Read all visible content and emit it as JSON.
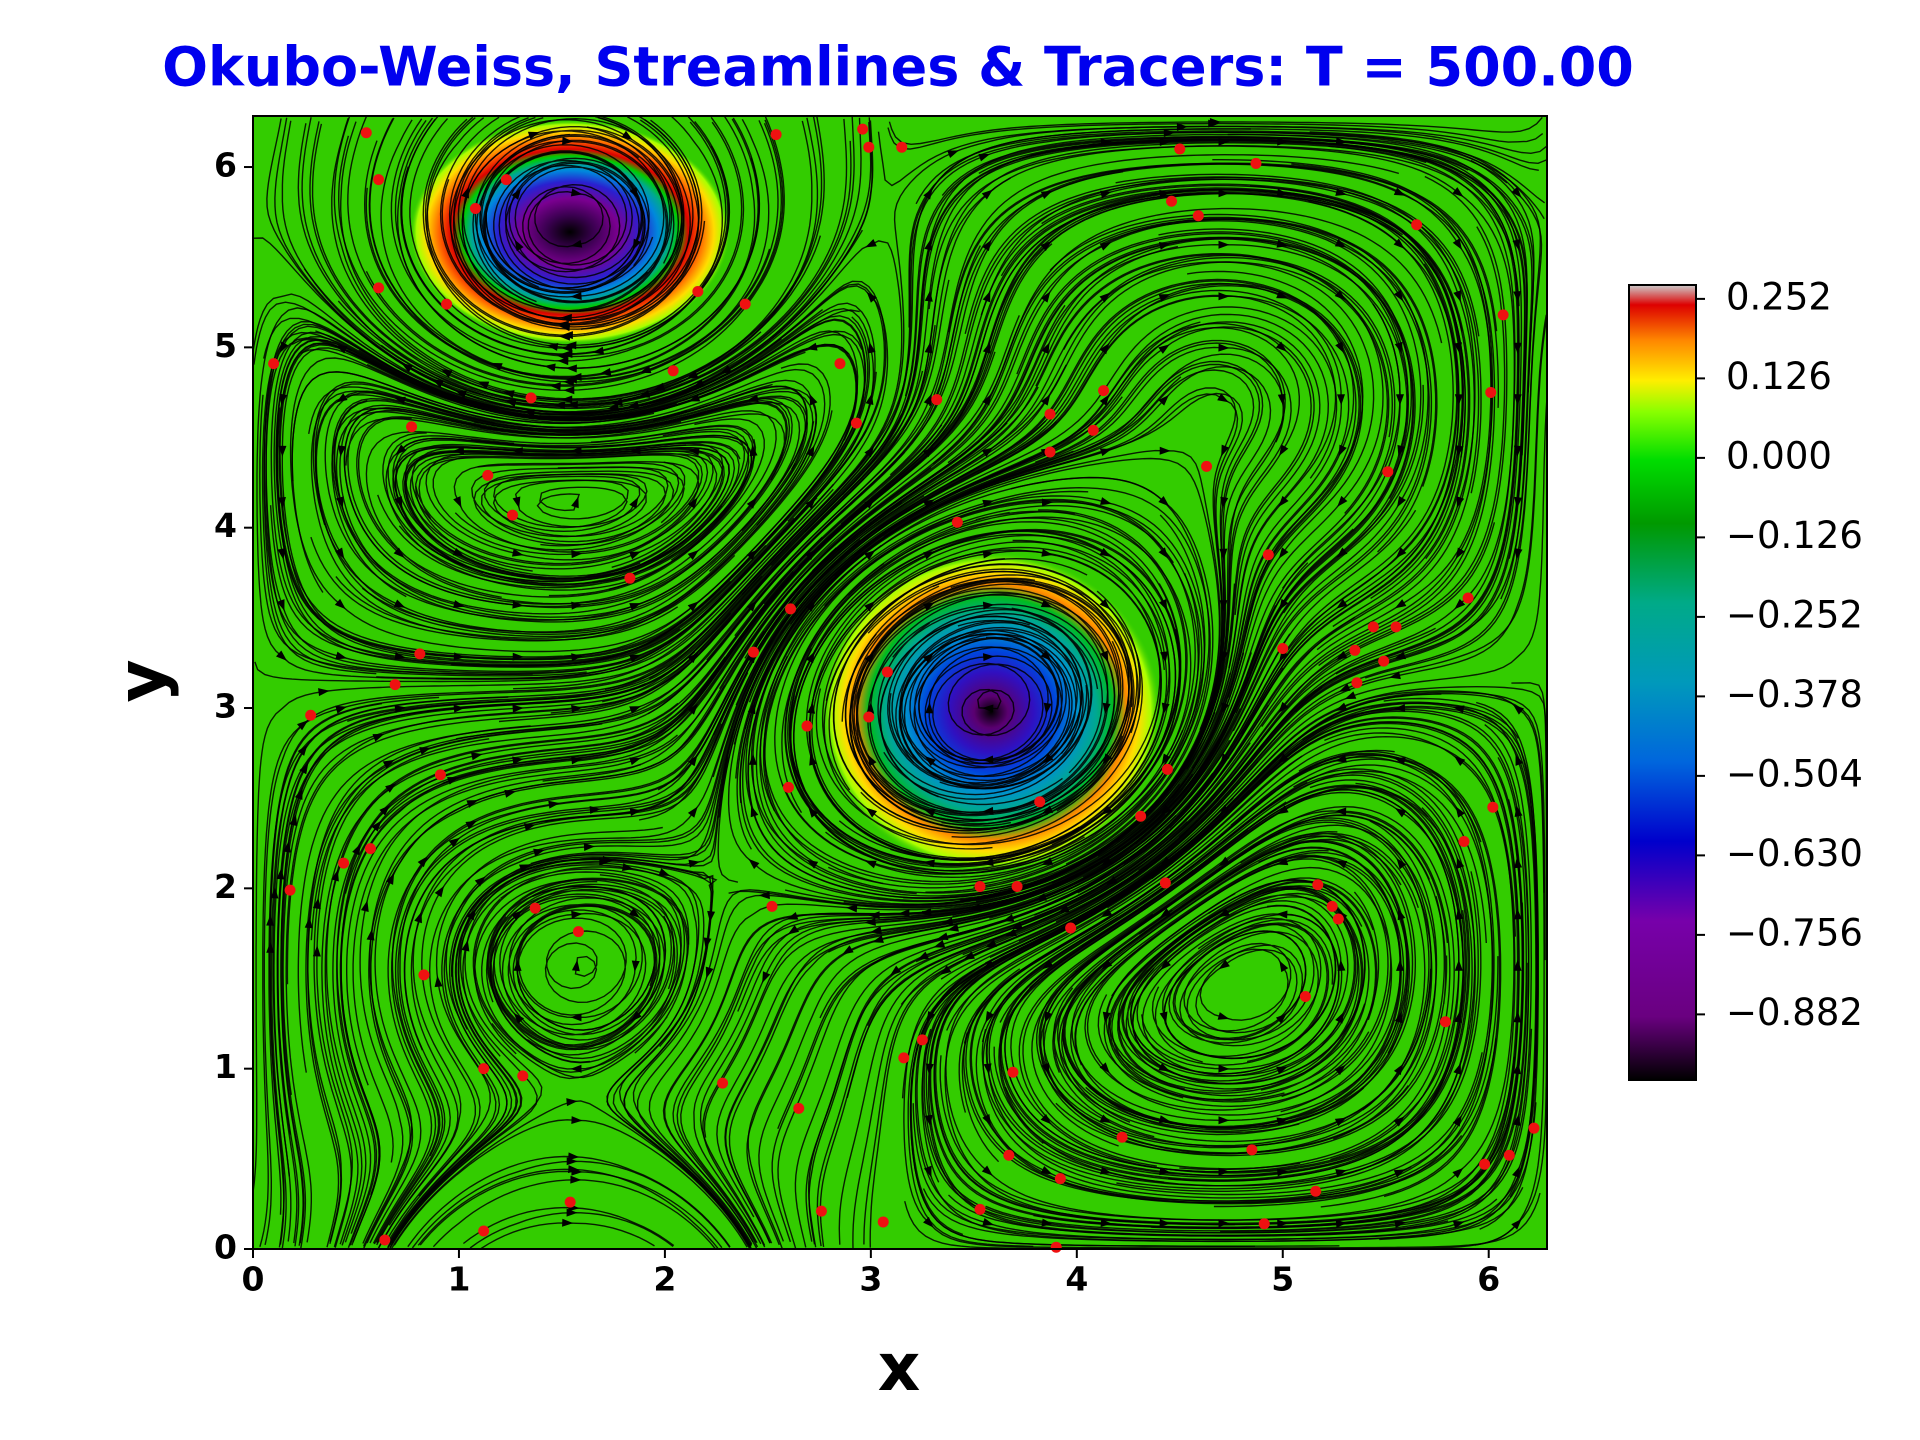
{
  "chart_data": {
    "type": "scatter",
    "title": "Okubo-Weiss, Streamlines & Tracers: T = 500.00",
    "xlabel": "x",
    "ylabel": "y",
    "xlim": [
      0,
      6.283
    ],
    "ylim": [
      0,
      6.283
    ],
    "xticks": [
      0,
      1,
      2,
      3,
      4,
      5,
      6
    ],
    "yticks": [
      0,
      1,
      2,
      3,
      4,
      5,
      6
    ],
    "color": "#ee1111",
    "x": [
      0.55,
      0.61,
      0.61,
      0.1,
      0.77,
      1.14,
      1.26,
      1.35,
      0.94,
      1.08,
      1.23,
      2.16,
      2.39,
      2.04,
      2.54,
      2.85,
      2.93,
      2.96,
      2.99,
      3.15,
      3.32,
      3.87,
      3.87,
      4.08,
      4.13,
      4.5,
      4.46,
      4.59,
      4.87,
      5.65,
      6.07,
      6.01,
      5.51,
      4.63,
      4.93,
      3.42,
      1.83,
      2.61,
      2.43,
      0.81,
      0.69,
      0.28,
      0.91,
      0.44,
      0.57,
      0.18,
      1.37,
      1.58,
      0.83,
      1.12,
      1.31,
      2.28,
      2.65,
      2.52,
      2.6,
      2.69,
      2.99,
      3.08,
      3.82,
      4.44,
      4.31,
      4.43,
      3.53,
      3.71,
      3.97,
      5.0,
      5.35,
      5.44,
      5.55,
      5.49,
      5.36,
      5.9,
      6.02,
      5.88,
      5.17,
      5.24,
      5.27,
      5.11,
      5.79,
      3.25,
      3.16,
      3.69,
      4.22,
      4.85,
      5.16,
      6.22,
      5.98,
      6.1,
      4.91,
      3.92,
      3.67,
      3.53,
      3.9,
      3.06,
      2.76,
      1.54,
      1.12,
      0.64
    ],
    "y": [
      6.19,
      5.93,
      5.33,
      4.91,
      4.56,
      4.29,
      4.07,
      4.72,
      5.24,
      5.77,
      5.93,
      5.31,
      5.24,
      4.87,
      6.18,
      4.91,
      4.58,
      6.21,
      6.11,
      6.11,
      4.71,
      4.63,
      4.42,
      4.54,
      4.76,
      6.1,
      5.81,
      5.73,
      6.02,
      5.68,
      5.18,
      4.75,
      4.31,
      4.34,
      3.85,
      4.03,
      3.72,
      3.55,
      3.31,
      3.3,
      3.13,
      2.96,
      2.63,
      2.14,
      2.22,
      1.99,
      1.89,
      1.76,
      1.52,
      1.0,
      0.96,
      0.92,
      0.78,
      1.9,
      2.56,
      2.9,
      2.95,
      3.2,
      2.48,
      2.66,
      2.4,
      2.03,
      2.01,
      2.01,
      1.78,
      3.33,
      3.32,
      3.45,
      3.45,
      3.26,
      3.14,
      3.61,
      2.45,
      2.26,
      2.02,
      1.9,
      1.83,
      1.4,
      1.26,
      1.16,
      1.06,
      0.98,
      0.62,
      0.55,
      0.32,
      0.67,
      0.47,
      0.52,
      0.14,
      0.39,
      0.52,
      0.22,
      0.01,
      0.15,
      0.21,
      0.26,
      0.1,
      0.05
    ],
    "colorbar": {
      "clim": [
        -0.986,
        0.274
      ],
      "ticks": [
        0.252,
        0.126,
        {
          "value": 0,
          "label": "0.000"
        },
        {
          "value": -0.126,
          "label": "−0.126"
        },
        {
          "value": -0.252,
          "label": "−0.252"
        },
        {
          "value": -0.378,
          "label": "−0.378"
        },
        {
          "value": -0.504,
          "label": "−0.504"
        },
        {
          "value": -0.63,
          "label": "−0.630"
        },
        {
          "value": -0.756,
          "label": "−0.756"
        },
        {
          "value": -0.882,
          "label": "−0.882"
        }
      ]
    }
  }
}
